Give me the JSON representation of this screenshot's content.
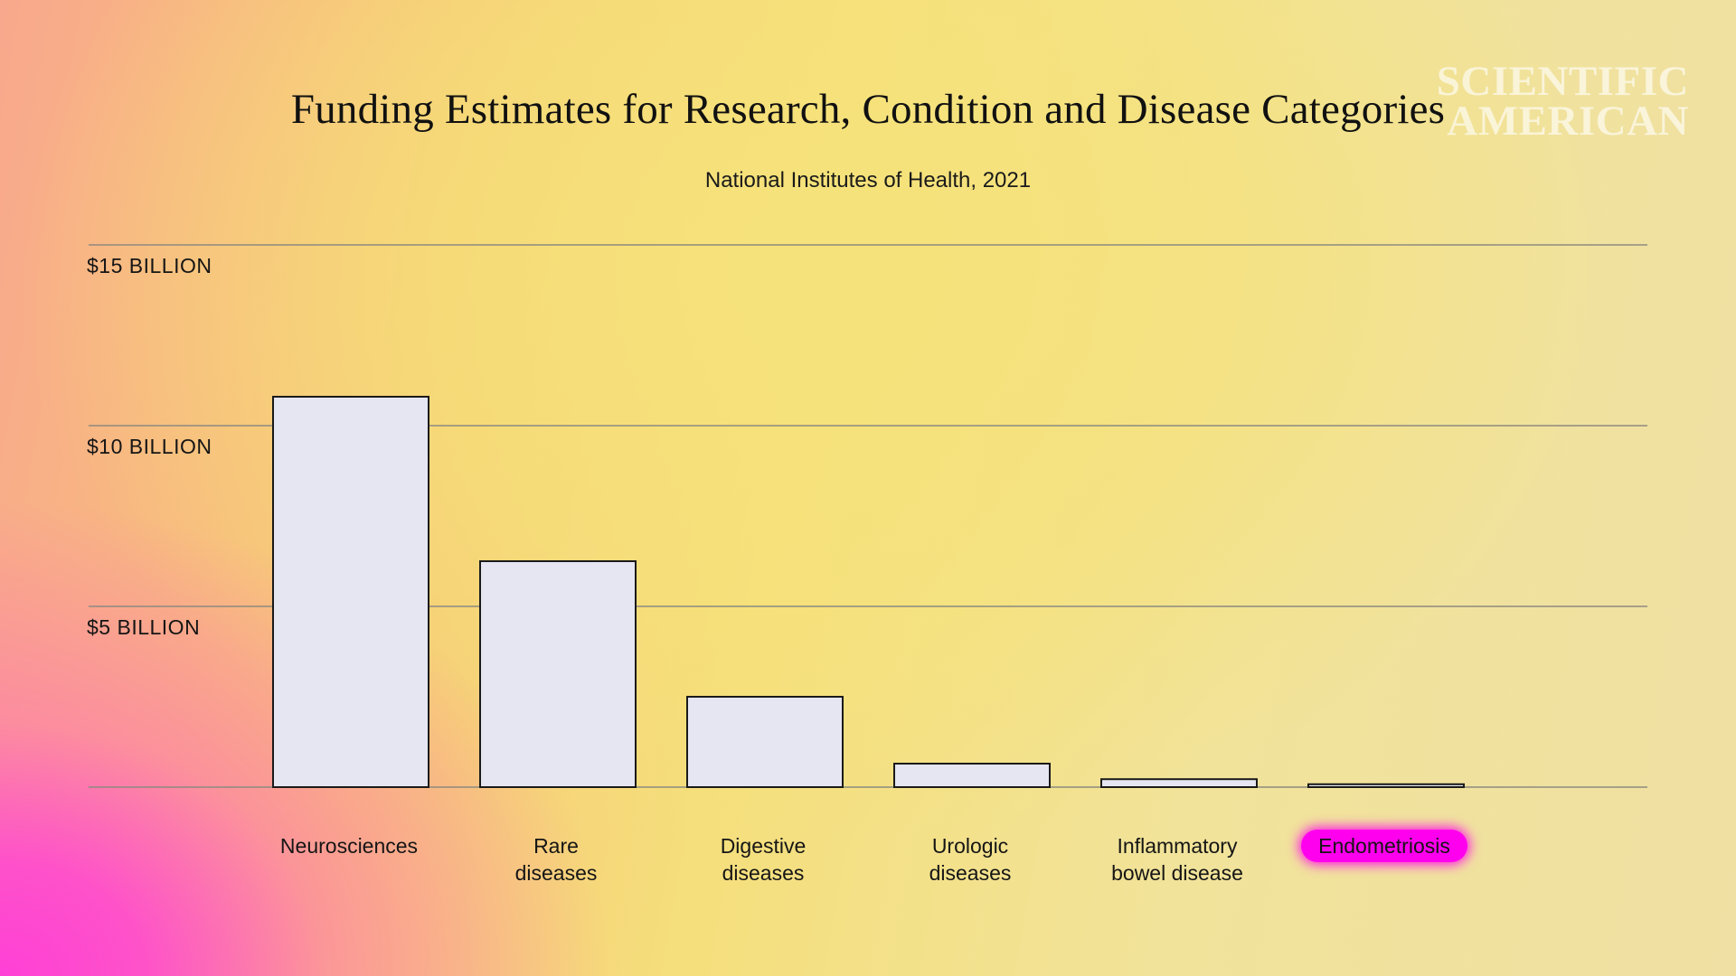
{
  "header": {
    "title": "Funding Estimates for Research, Condition and Disease Categories",
    "subtitle": "National Institutes of Health, 2021"
  },
  "logo": {
    "line1": "SCIENTIFIC",
    "line2": "AMERICAN"
  },
  "colors": {
    "bar_fill": "#e6e6f2",
    "bar_stroke": "#1a1a1a",
    "grid": "#8c8a80",
    "highlight": "#ff00ee"
  },
  "chart_data": {
    "type": "bar",
    "title": "Funding Estimates for Research, Condition and Disease Categories",
    "subtitle": "National Institutes of Health, 2021",
    "categories": [
      [
        "Neurosciences"
      ],
      [
        "Rare",
        "diseases"
      ],
      [
        "Digestive",
        "diseases"
      ],
      [
        "Urologic",
        "diseases"
      ],
      [
        "Inflammatory",
        "bowel disease"
      ],
      [
        "Endometriosis"
      ]
    ],
    "values": [
      10.8,
      6.25,
      2.5,
      0.65,
      0.22,
      0.08
    ],
    "units": "billion USD",
    "ylim": [
      0,
      15
    ],
    "yticks": [
      {
        "value": 15,
        "label": "$15 BILLION"
      },
      {
        "value": 10,
        "label": "$10 BILLION"
      },
      {
        "value": 5,
        "label": "$5 BILLION"
      }
    ],
    "grid": true,
    "highlighted_category": "Endometriosis"
  }
}
